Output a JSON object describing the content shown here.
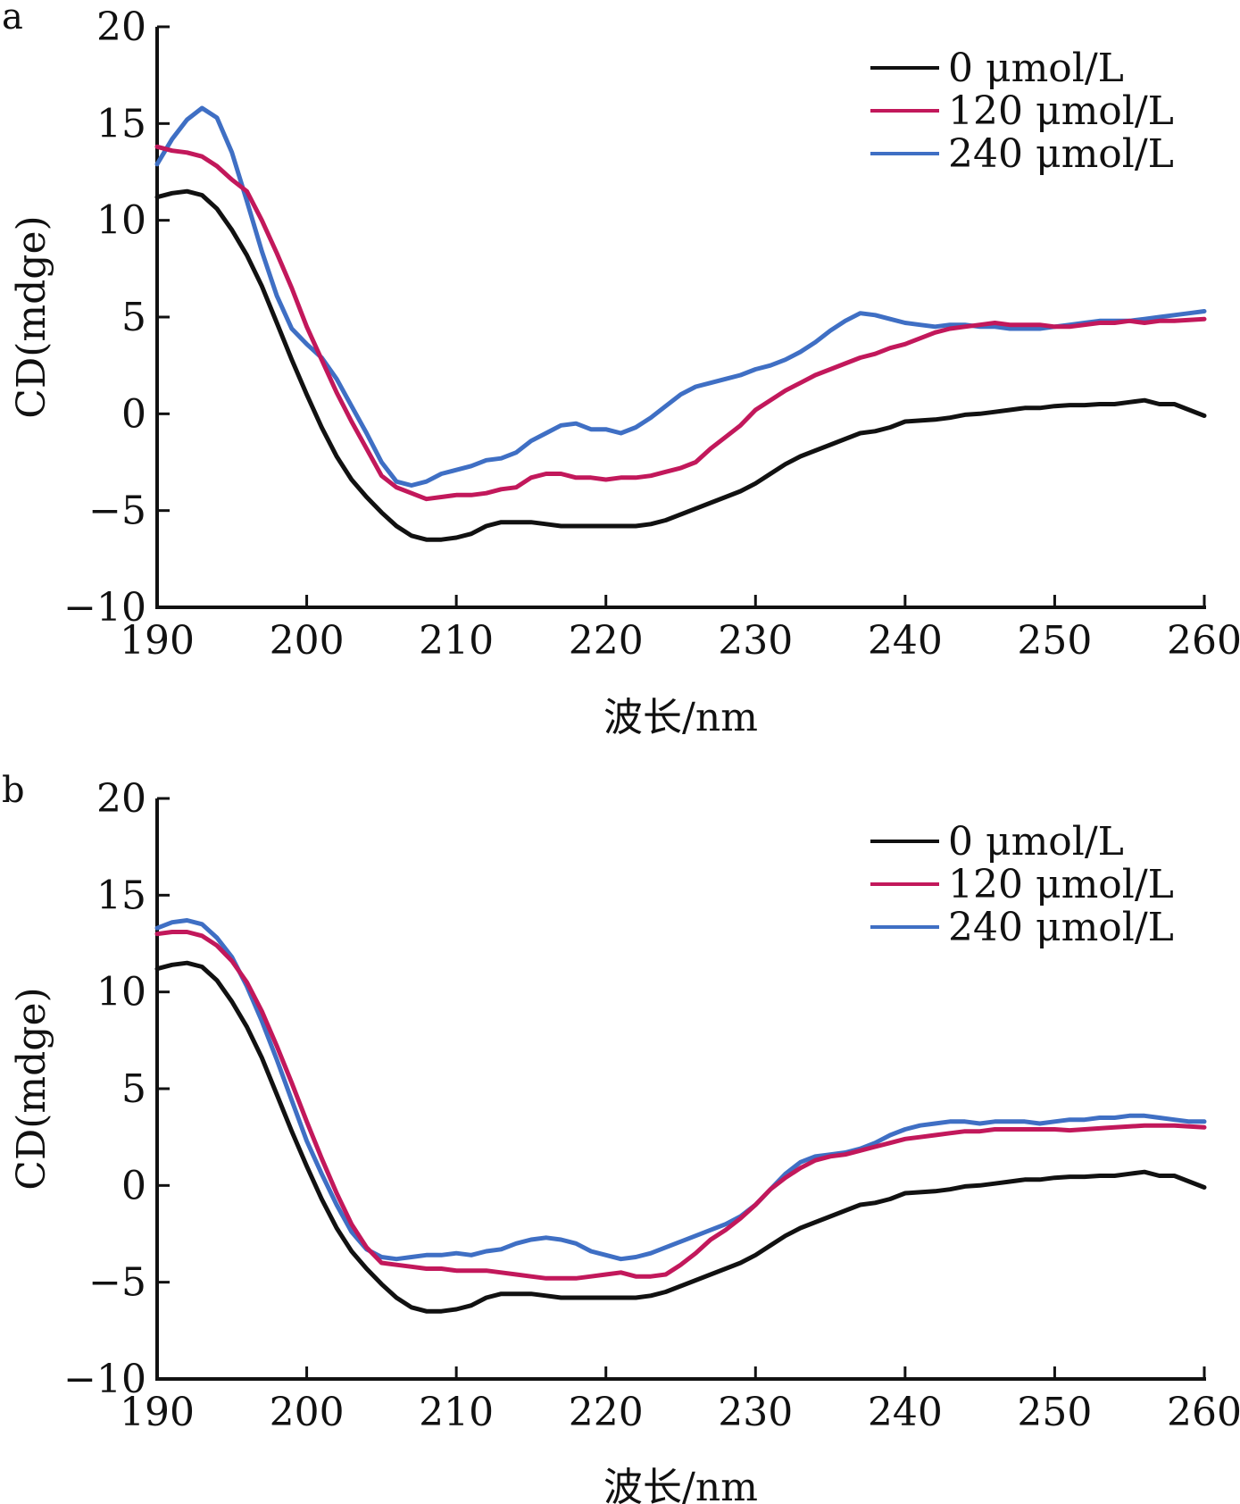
{
  "colors": {
    "black": "#111111",
    "magenta": "#c2185b",
    "blue": "#3f6fc4",
    "axis": "#111111"
  },
  "chart_data": [
    {
      "type": "line",
      "panel_label": "a",
      "xlabel": "波长/nm",
      "ylabel": "CD(mdge)",
      "xlim": [
        190,
        260
      ],
      "ylim": [
        -10,
        20
      ],
      "xticks": [
        "190",
        "200",
        "210",
        "220",
        "230",
        "240",
        "250",
        "260"
      ],
      "yticks": [
        "20",
        "15",
        "10",
        "5",
        "0",
        "−5",
        "−10"
      ],
      "legend_position": "top-right",
      "series": [
        {
          "name": "0 μmol/L",
          "color": "#111111",
          "x": [
            190,
            191,
            192,
            193,
            194,
            195,
            196,
            197,
            198,
            199,
            200,
            201,
            202,
            203,
            204,
            205,
            206,
            207,
            208,
            209,
            210,
            211,
            212,
            213,
            214,
            215,
            216,
            217,
            218,
            219,
            220,
            221,
            222,
            223,
            224,
            225,
            226,
            227,
            228,
            229,
            230,
            231,
            232,
            233,
            234,
            235,
            236,
            237,
            238,
            239,
            240,
            241,
            242,
            243,
            244,
            245,
            246,
            247,
            248,
            249,
            250,
            251,
            252,
            253,
            254,
            255,
            256,
            257,
            258,
            259,
            260
          ],
          "y": [
            11.2,
            11.4,
            11.5,
            11.3,
            10.6,
            9.5,
            8.2,
            6.6,
            4.7,
            2.8,
            1.0,
            -0.7,
            -2.2,
            -3.4,
            -4.3,
            -5.1,
            -5.8,
            -6.3,
            -6.5,
            -6.5,
            -6.4,
            -6.2,
            -5.8,
            -5.6,
            -5.6,
            -5.6,
            -5.7,
            -5.8,
            -5.8,
            -5.8,
            -5.8,
            -5.8,
            -5.8,
            -5.7,
            -5.5,
            -5.2,
            -4.9,
            -4.6,
            -4.3,
            -4.0,
            -3.6,
            -3.1,
            -2.6,
            -2.2,
            -1.9,
            -1.6,
            -1.3,
            -1.0,
            -0.9,
            -0.7,
            -0.4,
            -0.35,
            -0.3,
            -0.2,
            -0.05,
            0.0,
            0.1,
            0.2,
            0.3,
            0.3,
            0.4,
            0.45,
            0.45,
            0.5,
            0.5,
            0.6,
            0.7,
            0.5,
            0.5,
            0.2,
            -0.1
          ]
        },
        {
          "name": "120 μmol/L",
          "color": "#c2185b",
          "x": [
            190,
            191,
            192,
            193,
            194,
            195,
            196,
            197,
            198,
            199,
            200,
            201,
            202,
            203,
            204,
            205,
            206,
            207,
            208,
            209,
            210,
            211,
            212,
            213,
            214,
            215,
            216,
            217,
            218,
            219,
            220,
            221,
            222,
            223,
            224,
            225,
            226,
            227,
            228,
            229,
            230,
            231,
            232,
            233,
            234,
            235,
            236,
            237,
            238,
            239,
            240,
            241,
            242,
            243,
            244,
            245,
            246,
            247,
            248,
            249,
            250,
            251,
            252,
            253,
            254,
            255,
            256,
            257,
            258,
            259,
            260
          ],
          "y": [
            13.8,
            13.6,
            13.5,
            13.3,
            12.8,
            12.1,
            11.5,
            10.0,
            8.3,
            6.5,
            4.5,
            2.8,
            1.1,
            -0.4,
            -1.8,
            -3.2,
            -3.8,
            -4.1,
            -4.4,
            -4.3,
            -4.2,
            -4.2,
            -4.1,
            -3.9,
            -3.8,
            -3.3,
            -3.1,
            -3.1,
            -3.3,
            -3.3,
            -3.4,
            -3.3,
            -3.3,
            -3.2,
            -3.0,
            -2.8,
            -2.5,
            -1.8,
            -1.2,
            -0.6,
            0.2,
            0.7,
            1.2,
            1.6,
            2.0,
            2.3,
            2.6,
            2.9,
            3.1,
            3.4,
            3.6,
            3.9,
            4.2,
            4.4,
            4.5,
            4.6,
            4.7,
            4.6,
            4.6,
            4.6,
            4.5,
            4.5,
            4.6,
            4.7,
            4.7,
            4.8,
            4.7,
            4.8,
            4.8,
            4.85,
            4.9
          ]
        },
        {
          "name": "240 μmol/L",
          "color": "#3f6fc4",
          "x": [
            190,
            191,
            192,
            193,
            194,
            195,
            196,
            197,
            198,
            199,
            200,
            201,
            202,
            203,
            204,
            205,
            206,
            207,
            208,
            209,
            210,
            211,
            212,
            213,
            214,
            215,
            216,
            217,
            218,
            219,
            220,
            221,
            222,
            223,
            224,
            225,
            226,
            227,
            228,
            229,
            230,
            231,
            232,
            233,
            234,
            235,
            236,
            237,
            238,
            239,
            240,
            241,
            242,
            243,
            244,
            245,
            246,
            247,
            248,
            249,
            250,
            251,
            252,
            253,
            254,
            255,
            256,
            257,
            258,
            259,
            260
          ],
          "y": [
            12.9,
            14.2,
            15.2,
            15.8,
            15.3,
            13.5,
            11.0,
            8.4,
            6.1,
            4.4,
            3.6,
            2.9,
            1.8,
            0.4,
            -1.0,
            -2.5,
            -3.5,
            -3.7,
            -3.5,
            -3.1,
            -2.9,
            -2.7,
            -2.4,
            -2.3,
            -2.0,
            -1.4,
            -1.0,
            -0.6,
            -0.5,
            -0.8,
            -0.8,
            -1.0,
            -0.7,
            -0.2,
            0.4,
            1.0,
            1.4,
            1.6,
            1.8,
            2.0,
            2.3,
            2.5,
            2.8,
            3.2,
            3.7,
            4.3,
            4.8,
            5.2,
            5.1,
            4.9,
            4.7,
            4.6,
            4.5,
            4.6,
            4.6,
            4.5,
            4.5,
            4.4,
            4.4,
            4.4,
            4.5,
            4.6,
            4.7,
            4.8,
            4.8,
            4.8,
            4.9,
            5.0,
            5.1,
            5.2,
            5.3
          ]
        }
      ]
    },
    {
      "type": "line",
      "panel_label": "b",
      "xlabel": "波长/nm",
      "ylabel": "CD(mdge)",
      "xlim": [
        190,
        260
      ],
      "ylim": [
        -10,
        20
      ],
      "xticks": [
        "190",
        "200",
        "210",
        "220",
        "230",
        "240",
        "250",
        "260"
      ],
      "yticks": [
        "20",
        "15",
        "10",
        "5",
        "0",
        "−5",
        "−10"
      ],
      "legend_position": "top-right",
      "series": [
        {
          "name": "0 μmol/L",
          "color": "#111111",
          "x": [
            190,
            191,
            192,
            193,
            194,
            195,
            196,
            197,
            198,
            199,
            200,
            201,
            202,
            203,
            204,
            205,
            206,
            207,
            208,
            209,
            210,
            211,
            212,
            213,
            214,
            215,
            216,
            217,
            218,
            219,
            220,
            221,
            222,
            223,
            224,
            225,
            226,
            227,
            228,
            229,
            230,
            231,
            232,
            233,
            234,
            235,
            236,
            237,
            238,
            239,
            240,
            241,
            242,
            243,
            244,
            245,
            246,
            247,
            248,
            249,
            250,
            251,
            252,
            253,
            254,
            255,
            256,
            257,
            258,
            259,
            260
          ],
          "y": [
            11.2,
            11.4,
            11.5,
            11.3,
            10.6,
            9.5,
            8.2,
            6.6,
            4.7,
            2.8,
            1.0,
            -0.7,
            -2.2,
            -3.4,
            -4.3,
            -5.1,
            -5.8,
            -6.3,
            -6.5,
            -6.5,
            -6.4,
            -6.2,
            -5.8,
            -5.6,
            -5.6,
            -5.6,
            -5.7,
            -5.8,
            -5.8,
            -5.8,
            -5.8,
            -5.8,
            -5.8,
            -5.7,
            -5.5,
            -5.2,
            -4.9,
            -4.6,
            -4.3,
            -4.0,
            -3.6,
            -3.1,
            -2.6,
            -2.2,
            -1.9,
            -1.6,
            -1.3,
            -1.0,
            -0.9,
            -0.7,
            -0.4,
            -0.35,
            -0.3,
            -0.2,
            -0.05,
            0.0,
            0.1,
            0.2,
            0.3,
            0.3,
            0.4,
            0.45,
            0.45,
            0.5,
            0.5,
            0.6,
            0.7,
            0.5,
            0.5,
            0.2,
            -0.1
          ]
        },
        {
          "name": "120 μmol/L",
          "color": "#c2185b",
          "x": [
            190,
            191,
            192,
            193,
            194,
            195,
            196,
            197,
            198,
            199,
            200,
            201,
            202,
            203,
            204,
            205,
            206,
            207,
            208,
            209,
            210,
            211,
            212,
            213,
            214,
            215,
            216,
            217,
            218,
            219,
            220,
            221,
            222,
            223,
            224,
            225,
            226,
            227,
            228,
            229,
            230,
            231,
            232,
            233,
            234,
            235,
            236,
            237,
            238,
            239,
            240,
            241,
            242,
            243,
            244,
            245,
            246,
            247,
            248,
            249,
            250,
            251,
            252,
            253,
            254,
            255,
            256,
            257,
            258,
            259,
            260
          ],
          "y": [
            13.0,
            13.1,
            13.1,
            12.9,
            12.4,
            11.6,
            10.5,
            9.0,
            7.2,
            5.3,
            3.3,
            1.4,
            -0.4,
            -2.0,
            -3.2,
            -4.0,
            -4.1,
            -4.2,
            -4.3,
            -4.3,
            -4.4,
            -4.4,
            -4.4,
            -4.5,
            -4.6,
            -4.7,
            -4.8,
            -4.8,
            -4.8,
            -4.7,
            -4.6,
            -4.5,
            -4.7,
            -4.7,
            -4.6,
            -4.1,
            -3.5,
            -2.8,
            -2.3,
            -1.7,
            -1.0,
            -0.2,
            0.4,
            0.9,
            1.3,
            1.5,
            1.6,
            1.8,
            2.0,
            2.2,
            2.4,
            2.5,
            2.6,
            2.7,
            2.8,
            2.8,
            2.9,
            2.9,
            2.9,
            2.9,
            2.9,
            2.85,
            2.9,
            2.95,
            3.0,
            3.05,
            3.1,
            3.1,
            3.1,
            3.05,
            3.0
          ]
        },
        {
          "name": "240 μmol/L",
          "color": "#3f6fc4",
          "x": [
            190,
            191,
            192,
            193,
            194,
            195,
            196,
            197,
            198,
            199,
            200,
            201,
            202,
            203,
            204,
            205,
            206,
            207,
            208,
            209,
            210,
            211,
            212,
            213,
            214,
            215,
            216,
            217,
            218,
            219,
            220,
            221,
            222,
            223,
            224,
            225,
            226,
            227,
            228,
            229,
            230,
            231,
            232,
            233,
            234,
            235,
            236,
            237,
            238,
            239,
            240,
            241,
            242,
            243,
            244,
            245,
            246,
            247,
            248,
            249,
            250,
            251,
            252,
            253,
            254,
            255,
            256,
            257,
            258,
            259,
            260
          ],
          "y": [
            13.3,
            13.6,
            13.7,
            13.5,
            12.8,
            11.8,
            10.3,
            8.5,
            6.5,
            4.4,
            2.3,
            0.6,
            -1.0,
            -2.4,
            -3.3,
            -3.7,
            -3.8,
            -3.7,
            -3.6,
            -3.6,
            -3.5,
            -3.6,
            -3.4,
            -3.3,
            -3.0,
            -2.8,
            -2.7,
            -2.8,
            -3.0,
            -3.4,
            -3.6,
            -3.8,
            -3.7,
            -3.5,
            -3.2,
            -2.9,
            -2.6,
            -2.3,
            -2.0,
            -1.6,
            -1.0,
            -0.2,
            0.6,
            1.2,
            1.5,
            1.6,
            1.7,
            1.9,
            2.2,
            2.6,
            2.9,
            3.1,
            3.2,
            3.3,
            3.3,
            3.2,
            3.3,
            3.3,
            3.3,
            3.2,
            3.3,
            3.4,
            3.4,
            3.5,
            3.5,
            3.6,
            3.6,
            3.5,
            3.4,
            3.3,
            3.3
          ]
        }
      ]
    }
  ]
}
